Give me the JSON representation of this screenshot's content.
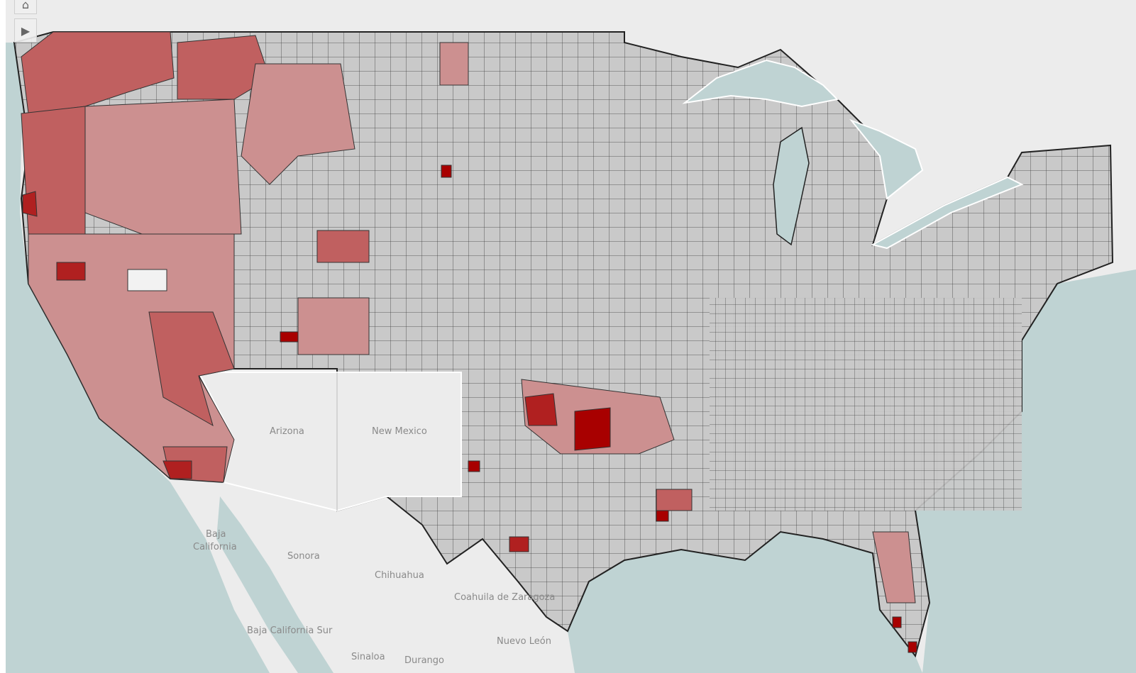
{
  "map": {
    "colors": {
      "land": "#ececec",
      "water": "#bfd3d3",
      "county_default": "#c9c9c9",
      "county_light": "#cc9090",
      "county_medium": "#c06060",
      "county_dark": "#b02020",
      "county_darkest": "#a80000",
      "county_none": "#f2f2f2",
      "border": "#333333"
    },
    "place_labels": [
      {
        "name": "Arizona"
      },
      {
        "name": "New Mexico"
      },
      {
        "name": "Baja California"
      },
      {
        "name": "Sonora"
      },
      {
        "name": "Chihuahua"
      },
      {
        "name": "Coahuila de Zaragoza"
      },
      {
        "name": "Baja California Sur"
      },
      {
        "name": "Nuevo León"
      },
      {
        "name": "Sinaloa"
      },
      {
        "name": "Durango"
      }
    ]
  },
  "controls": {
    "home_icon": "home-icon",
    "expand_icon": "play-triangle-icon"
  }
}
